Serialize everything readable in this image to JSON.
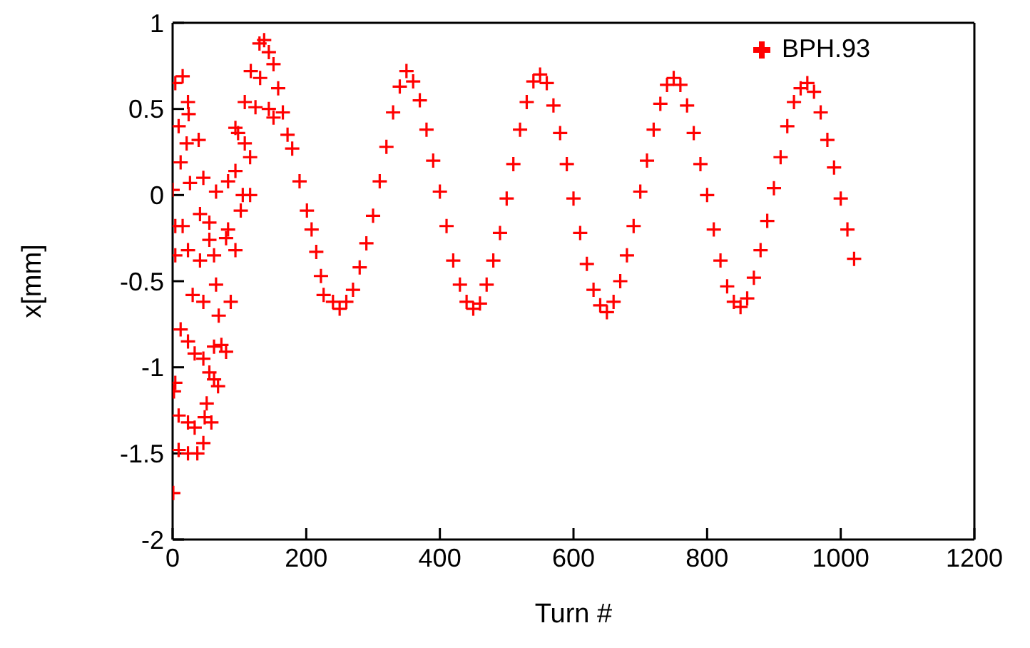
{
  "chart_data": {
    "type": "scatter",
    "xlabel": "Turn #",
    "ylabel": "x[mm]",
    "xlim": [
      0,
      1200
    ],
    "xticks": [
      0,
      200,
      400,
      600,
      800,
      1000,
      1200
    ],
    "ylim": [
      -2,
      1
    ],
    "yticks": [
      -2,
      -1.5,
      -1,
      -0.5,
      0,
      0.5,
      1
    ],
    "legend": "top right",
    "marker": "cross",
    "series": [
      {
        "name": "BPH.93",
        "color": "#ff0000",
        "x": [
          4,
          15,
          23,
          9,
          24,
          39,
          21,
          12,
          0,
          26,
          46,
          4,
          15,
          41,
          55,
          65,
          83,
          94,
          4,
          23,
          41,
          55,
          62,
          80,
          94,
          83,
          105,
          102,
          116,
          30,
          46,
          65,
          87,
          69,
          12,
          23,
          33,
          46,
          62,
          73,
          80,
          55,
          62,
          4,
          2,
          9,
          23,
          33,
          48,
          58,
          51,
          9,
          23,
          37,
          46,
          1,
          68,
          94,
          98,
          108,
          116,
          108,
          124,
          130,
          137,
          144,
          117,
          131,
          151,
          158,
          165,
          172,
          179,
          190,
          201,
          208,
          215,
          222,
          226,
          144,
          151,
          240,
          250,
          260,
          270,
          280,
          290,
          300,
          310,
          320,
          330,
          340,
          350,
          360,
          370,
          380,
          390,
          400,
          410,
          420,
          430,
          440,
          450,
          460,
          470,
          480,
          490,
          500,
          510,
          520,
          530,
          540,
          550,
          560,
          570,
          580,
          590,
          600,
          610,
          620,
          630,
          640,
          650,
          660,
          670,
          680,
          690,
          700,
          710,
          720,
          730,
          740,
          750,
          760,
          770,
          780,
          790,
          800,
          810,
          820,
          830,
          840,
          850,
          860,
          870,
          880,
          890,
          900,
          910,
          920,
          930,
          940,
          950,
          960,
          970,
          980,
          990,
          1000,
          1010,
          1020
        ],
        "values": [
          0.65,
          0.69,
          0.54,
          0.4,
          0.47,
          0.32,
          0.3,
          0.19,
          0.03,
          0.07,
          0.1,
          -0.18,
          -0.18,
          -0.11,
          -0.16,
          0.02,
          0.08,
          0.14,
          -0.35,
          -0.32,
          -0.38,
          -0.26,
          -0.35,
          -0.25,
          -0.32,
          -0.2,
          0,
          -0.09,
          0,
          -0.58,
          -0.62,
          -0.52,
          -0.62,
          -0.7,
          -0.78,
          -0.85,
          -0.92,
          -0.95,
          -0.88,
          -0.87,
          -0.91,
          -1.03,
          -1.07,
          -1.09,
          -1.14,
          -1.28,
          -1.32,
          -1.35,
          -1.29,
          -1.32,
          -1.21,
          -1.48,
          -1.5,
          -1.5,
          -1.44,
          -1.73,
          -1.11,
          0.39,
          0.36,
          0.3,
          0.22,
          0.54,
          0.51,
          0.88,
          0.9,
          0.83,
          0.72,
          0.68,
          0.76,
          0.62,
          0.48,
          0.35,
          0.27,
          0.08,
          -0.09,
          -0.2,
          -0.33,
          -0.47,
          -0.58,
          0.5,
          0.45,
          -0.62,
          -0.66,
          -0.62,
          -0.55,
          -0.42,
          -0.28,
          -0.12,
          0.08,
          0.28,
          0.48,
          0.63,
          0.72,
          0.66,
          0.55,
          0.38,
          0.2,
          0.02,
          -0.18,
          -0.38,
          -0.52,
          -0.62,
          -0.66,
          -0.63,
          -0.52,
          -0.38,
          -0.22,
          -0.02,
          0.18,
          0.38,
          0.54,
          0.66,
          0.7,
          0.65,
          0.52,
          0.36,
          0.18,
          -0.02,
          -0.22,
          -0.4,
          -0.55,
          -0.64,
          -0.68,
          -0.62,
          -0.5,
          -0.35,
          -0.18,
          0.02,
          0.2,
          0.38,
          0.53,
          0.64,
          0.68,
          0.64,
          0.52,
          0.36,
          0.18,
          0,
          -0.2,
          -0.38,
          -0.53,
          -0.62,
          -0.65,
          -0.6,
          -0.48,
          -0.32,
          -0.15,
          0.04,
          0.22,
          0.4,
          0.54,
          0.62,
          0.65,
          0.6,
          0.48,
          0.32,
          0.16,
          -0.02,
          -0.2,
          -0.37
        ]
      }
    ]
  }
}
